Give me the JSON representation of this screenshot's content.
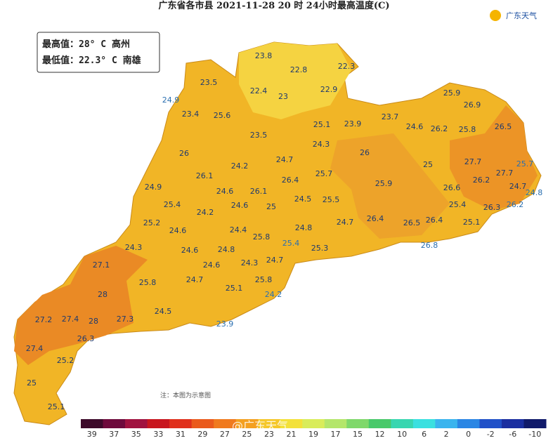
{
  "header": {
    "title": "广东省各市县 2021-11-28 20 时 24小时最高温度(C)",
    "logo": "广东天气"
  },
  "info": {
    "max": "最高值：28° C 高州",
    "min": "最低值：22.3° C 南雄"
  },
  "note": "注：本图为示意图",
  "watermark": "@广东天气",
  "stations": [
    23.8,
    22.8,
    22.3,
    23.5,
    22.4,
    23,
    22.9,
    24.9,
    23.4,
    25.6,
    25.1,
    23.9,
    23.7,
    24.6,
    26.2,
    25.8,
    25.9,
    26.9,
    26.5,
    23.5,
    24.3,
    26,
    24.7,
    26,
    25,
    27.7,
    27.7,
    25.7,
    26.1,
    24.2,
    25.7,
    26.4,
    24.9,
    24.6,
    26.1,
    25.9,
    26.6,
    26.2,
    24.7,
    24.8,
    25.4,
    24.6,
    25,
    24.5,
    25.5,
    25.4,
    26.3,
    26.2,
    24.2,
    25.2,
    24.6,
    24.4,
    24.8,
    24.7,
    26.4,
    26.5,
    26.4,
    25.1,
    25.8,
    25.4,
    26.8,
    24.3,
    24.6,
    24.8,
    25.3,
    27.1,
    24.3,
    24.7,
    24.6,
    25.8,
    24.7,
    25.8,
    25.1,
    28,
    24.2,
    24.5,
    27.2,
    27.4,
    28,
    27.3,
    23.9,
    26.3,
    27.4,
    25.2,
    25,
    25.1
  ],
  "legend": {
    "ticks": [
      39,
      37,
      35,
      33,
      31,
      29,
      27,
      25,
      23,
      21,
      19,
      17,
      15,
      12,
      10,
      6,
      2,
      0,
      -2,
      -6,
      -10
    ],
    "colors": [
      "#3d0a2a",
      "#6e0a3c",
      "#a0123f",
      "#c8161e",
      "#e0301c",
      "#ea5a1c",
      "#f07a1e",
      "#f4a020",
      "#f5c72a",
      "#f3e13a",
      "#d9ec5a",
      "#b4e66a",
      "#7fd86a",
      "#48c96a",
      "#38d6b0",
      "#3ae0e0",
      "#3ab4ee",
      "#2a86e4",
      "#2050c8",
      "#1a2ea0",
      "#101a6a"
    ]
  }
}
